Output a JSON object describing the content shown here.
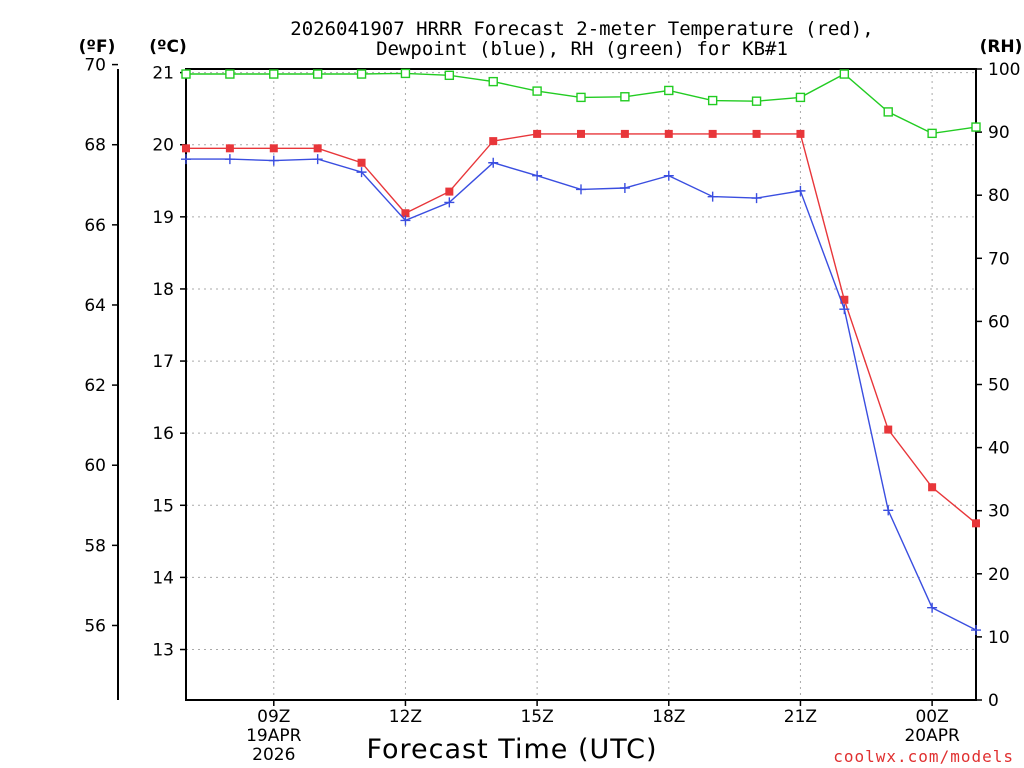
{
  "chart_data": {
    "type": "line",
    "title_line1": "2026041907 HRRR Forecast 2-meter Temperature (red),",
    "title_line2": "Dewpoint (blue), RH (green) for KB#1",
    "xlabel": "Forecast Time (UTC)",
    "credit": "coolwx.com/models",
    "unit_f": "(ºF)",
    "unit_c": "(ºC)",
    "unit_rh": "(RH)",
    "x_hours": [
      7,
      8,
      9,
      10,
      11,
      12,
      13,
      14,
      15,
      16,
      17,
      18,
      19,
      20,
      21,
      22,
      23,
      24,
      25
    ],
    "xlim": [
      7,
      25
    ],
    "x_ticks": [
      {
        "hour": 9,
        "label": "09Z",
        "sub1": "19APR",
        "sub2": "2026"
      },
      {
        "hour": 12,
        "label": "12Z",
        "sub1": "",
        "sub2": ""
      },
      {
        "hour": 15,
        "label": "15Z",
        "sub1": "",
        "sub2": ""
      },
      {
        "hour": 18,
        "label": "18Z",
        "sub1": "",
        "sub2": ""
      },
      {
        "hour": 21,
        "label": "21Z",
        "sub1": "",
        "sub2": ""
      },
      {
        "hour": 24,
        "label": "00Z",
        "sub1": "20APR",
        "sub2": ""
      }
    ],
    "c_axis": {
      "ylim": [
        12.3,
        21.05
      ],
      "ticks": [
        13,
        14,
        15,
        16,
        17,
        18,
        19,
        20,
        21
      ]
    },
    "f_axis": {
      "ylim": [
        54.14,
        69.89
      ],
      "ticks": [
        56,
        58,
        60,
        62,
        64,
        66,
        68,
        70
      ]
    },
    "rh_axis": {
      "ylim": [
        0,
        100
      ],
      "ticks": [
        0,
        10,
        20,
        30,
        40,
        50,
        60,
        70,
        80,
        90,
        100
      ]
    },
    "series": [
      {
        "name": "Temperature",
        "color": "#e8363a",
        "marker": "square-filled",
        "values": [
          19.95,
          19.95,
          19.95,
          19.95,
          19.75,
          19.05,
          19.35,
          20.05,
          20.15,
          20.15,
          20.15,
          20.15,
          20.15,
          20.15,
          20.15,
          17.85,
          16.05,
          15.25,
          14.75
        ]
      },
      {
        "name": "Dewpoint",
        "color": "#3a4ee0",
        "marker": "plus",
        "values": [
          19.8,
          19.8,
          19.78,
          19.8,
          19.62,
          18.95,
          19.2,
          19.75,
          19.57,
          19.38,
          19.4,
          19.57,
          19.28,
          19.26,
          19.36,
          17.72,
          14.93,
          13.58,
          13.27
        ]
      },
      {
        "name": "RH",
        "color": "#22cc22",
        "marker": "square-open",
        "values": [
          99.2,
          99.2,
          99.2,
          99.2,
          99.2,
          99.3,
          99.0,
          98.0,
          96.5,
          95.5,
          95.6,
          96.6,
          95.0,
          94.9,
          95.5,
          99.2,
          93.2,
          89.8,
          90.8
        ]
      }
    ]
  }
}
